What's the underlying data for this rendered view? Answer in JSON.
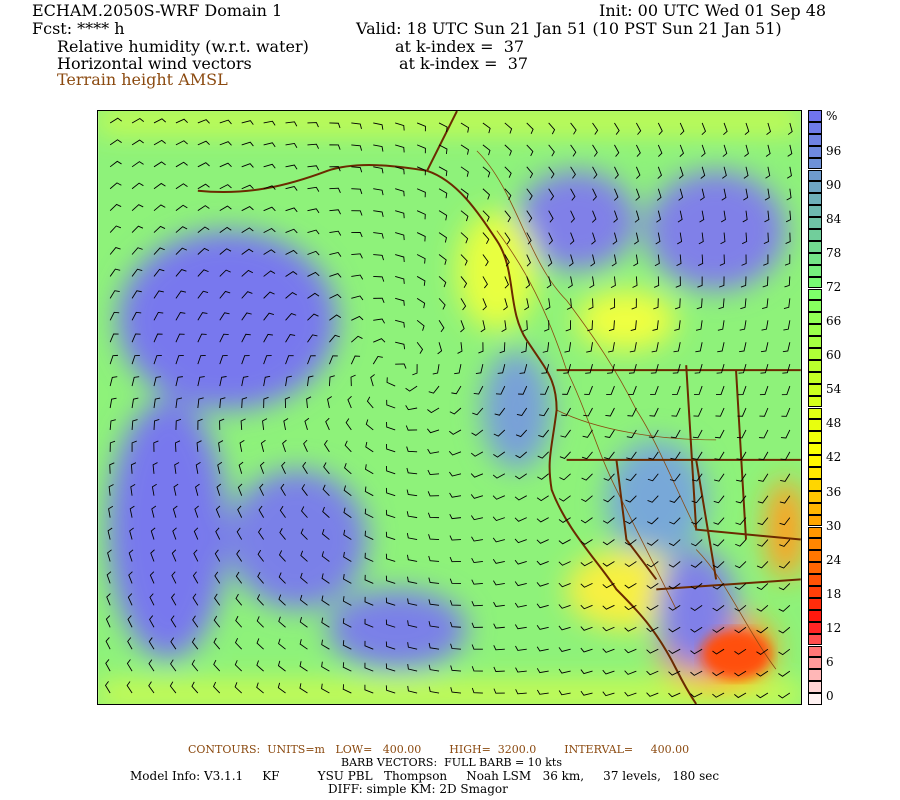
{
  "header": {
    "title": "ECHAM.2050S-WRF Domain 1",
    "init": "Init: 00 UTC Wed 01 Sep 48",
    "fcst": "Fcst: **** h",
    "valid": "Valid: 18 UTC Sun 21 Jan 51 (10 PST Sun 21 Jan 51)",
    "field1": "Relative humidity (w.r.t. water)",
    "field1_level": "at k-index =  37",
    "field2": "Horizontal wind vectors",
    "field2_level": "at k-index =  37",
    "field3": "Terrain height AMSL"
  },
  "colorbar": {
    "unit": "%",
    "labels": [
      "96",
      "90",
      "84",
      "78",
      "72",
      "66",
      "60",
      "54",
      "48",
      "42",
      "36",
      "30",
      "24",
      "18",
      "12",
      "6",
      "0"
    ],
    "range": [
      0,
      100
    ],
    "colors": {
      "low": "#ffffff",
      "red": "#ff1010",
      "orange": "#ff9900",
      "yellow": "#ffff00",
      "green": "#80ff70",
      "teal": "#70b8b0",
      "blue": "#7070f0"
    }
  },
  "footer": {
    "contours": "CONTOURS:  UNITS=m   LOW=   400.00        HIGH=  3200.0        INTERVAL=     400.00",
    "barbs": "BARB VECTORS:  FULL BARB = 10 kts",
    "model": "Model Info: V3.1.1     KF          YSU PBL   Thompson     Noah LSM   36 km,     37 levels,   180 sec",
    "diff": "DIFF: simple KM: 2D Smagor"
  },
  "colors": {
    "terrain_contour": "#8b4a10",
    "border": "#6b2a00"
  }
}
